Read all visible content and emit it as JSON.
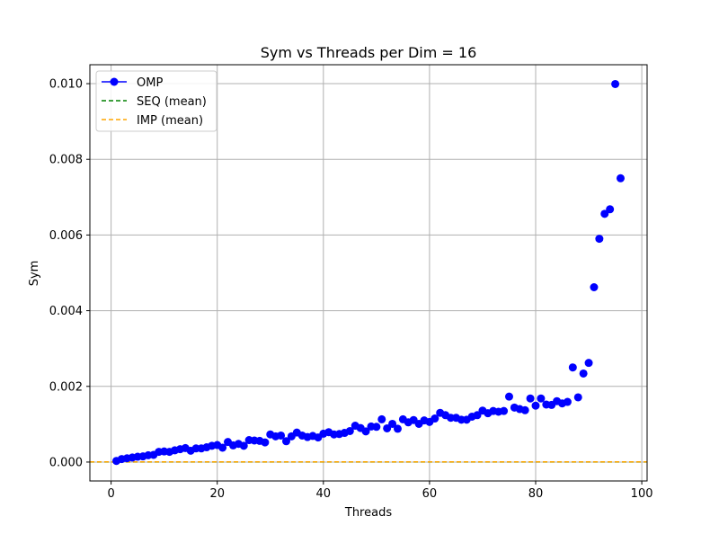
{
  "chart_data": {
    "type": "scatter",
    "title": "Sym vs Threads per Dim = 16",
    "xlabel": "Threads",
    "ylabel": "Sym",
    "xlim": [
      -4,
      101
    ],
    "ylim": [
      -0.0005,
      0.0105
    ],
    "xticks": [
      0,
      20,
      40,
      60,
      80,
      100
    ],
    "xtick_labels": [
      "0",
      "20",
      "40",
      "60",
      "80",
      "100"
    ],
    "yticks": [
      0.0,
      0.002,
      0.004,
      0.006,
      0.008,
      0.01
    ],
    "ytick_labels": [
      "0.000",
      "0.002",
      "0.004",
      "0.006",
      "0.008",
      "0.010"
    ],
    "grid": true,
    "legend_position": "upper-left",
    "series": [
      {
        "name": "OMP",
        "color": "#0000ff",
        "style": "markers",
        "x": [
          1,
          2,
          3,
          4,
          5,
          6,
          7,
          8,
          9,
          10,
          11,
          12,
          13,
          14,
          15,
          16,
          17,
          18,
          19,
          20,
          21,
          22,
          23,
          24,
          25,
          26,
          27,
          28,
          29,
          30,
          31,
          32,
          33,
          34,
          35,
          36,
          37,
          38,
          39,
          40,
          41,
          42,
          43,
          44,
          45,
          46,
          47,
          48,
          49,
          50,
          51,
          52,
          53,
          54,
          55,
          56,
          57,
          58,
          59,
          60,
          61,
          62,
          63,
          64,
          65,
          66,
          67,
          68,
          69,
          70,
          71,
          72,
          73,
          74,
          75,
          76,
          77,
          78,
          79,
          80,
          81,
          82,
          83,
          84,
          85,
          86,
          87,
          88,
          89,
          90,
          91,
          92,
          93,
          94,
          95,
          96
        ],
        "y": [
          3e-05,
          8e-05,
          0.0001,
          0.00012,
          0.00014,
          0.00015,
          0.00018,
          0.00019,
          0.00027,
          0.00028,
          0.00027,
          0.00031,
          0.00034,
          0.00037,
          0.0003,
          0.00036,
          0.00036,
          0.00039,
          0.00043,
          0.00045,
          0.00038,
          0.00053,
          0.00044,
          0.00048,
          0.00043,
          0.00058,
          0.00057,
          0.00056,
          0.00052,
          0.00073,
          0.00068,
          0.0007,
          0.00055,
          0.00068,
          0.00078,
          0.0007,
          0.00066,
          0.00069,
          0.00065,
          0.00075,
          0.00079,
          0.00073,
          0.00074,
          0.00077,
          0.00082,
          0.00096,
          0.0009,
          0.00081,
          0.00094,
          0.00093,
          0.00113,
          0.00089,
          0.00101,
          0.00088,
          0.00113,
          0.00105,
          0.00111,
          0.00101,
          0.0011,
          0.00106,
          0.00115,
          0.0013,
          0.00124,
          0.00117,
          0.00117,
          0.00112,
          0.00112,
          0.0012,
          0.00124,
          0.00136,
          0.00129,
          0.00135,
          0.00133,
          0.00135,
          0.00173,
          0.00144,
          0.0014,
          0.00137,
          0.00168,
          0.00149,
          0.00168,
          0.00152,
          0.00151,
          0.00161,
          0.00155,
          0.00159,
          0.0025,
          0.00171,
          0.00234,
          0.00262,
          0.00462,
          0.0059,
          0.00656,
          0.00668,
          0.00999,
          0.0075
        ]
      },
      {
        "name": "SEQ (mean)",
        "color": "#008000",
        "style": "dashed-hline",
        "value": 2e-06
      },
      {
        "name": "IMP (mean)",
        "color": "#ffa500",
        "style": "dashed-hline",
        "value": 4e-06
      }
    ]
  }
}
